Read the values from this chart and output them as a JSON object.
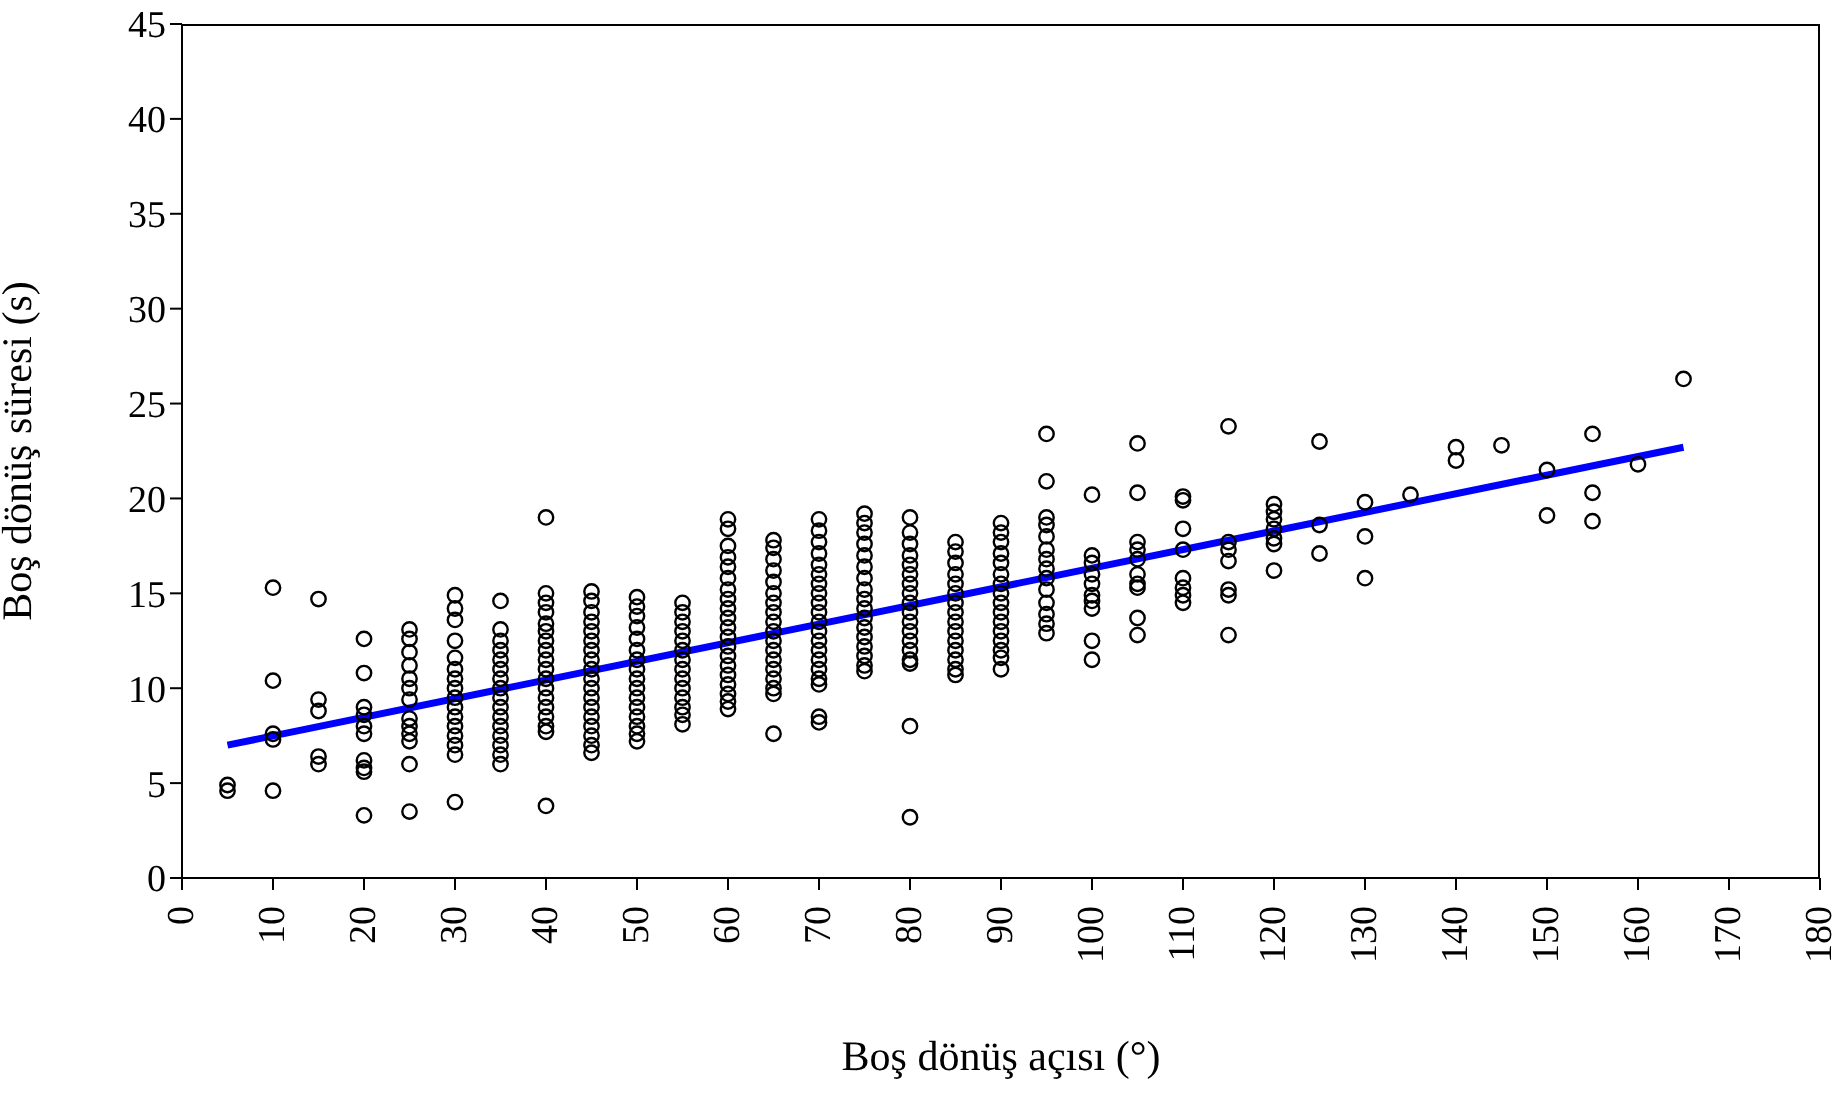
{
  "chart_data": {
    "type": "scatter",
    "xlabel": "Boş dönüş açısı (°)",
    "ylabel": "Boş dönüş süresi (s)",
    "xlim": [
      0,
      180
    ],
    "xticks": [
      0,
      10,
      20,
      30,
      40,
      50,
      60,
      70,
      80,
      90,
      100,
      110,
      120,
      130,
      140,
      150,
      160,
      170,
      180
    ],
    "ylim": [
      0,
      45
    ],
    "yticks": [
      0,
      5,
      10,
      15,
      20,
      25,
      30,
      35,
      40,
      45
    ],
    "series": [
      {
        "marker": "circle",
        "color": "#000000",
        "x": [
          5,
          5,
          10,
          10,
          10,
          10,
          10,
          15,
          15,
          15,
          15,
          15,
          20,
          20,
          20,
          20,
          20,
          20,
          20,
          20,
          20,
          20,
          25,
          25,
          25,
          25,
          25,
          25,
          25,
          25,
          25,
          25,
          25,
          25,
          25,
          30,
          30,
          30,
          30,
          30,
          30,
          30,
          30,
          30,
          30,
          30,
          30,
          30,
          30,
          30,
          30,
          35,
          35,
          35,
          35,
          35,
          35,
          35,
          35,
          35,
          35,
          35,
          35,
          35,
          35,
          35,
          35,
          40,
          40,
          40,
          40,
          40,
          40,
          40,
          40,
          40,
          40,
          40,
          40,
          40,
          40,
          40,
          40,
          40,
          40,
          45,
          45,
          45,
          45,
          45,
          45,
          45,
          45,
          45,
          45,
          45,
          45,
          45,
          45,
          45,
          45,
          45,
          45,
          50,
          50,
          50,
          50,
          50,
          50,
          50,
          50,
          50,
          50,
          50,
          50,
          50,
          50,
          50,
          50,
          55,
          55,
          55,
          55,
          55,
          55,
          55,
          55,
          55,
          55,
          55,
          55,
          55,
          55,
          60,
          60,
          60,
          60,
          60,
          60,
          60,
          60,
          60,
          60,
          60,
          60,
          60,
          60,
          60,
          60,
          60,
          60,
          60,
          60,
          65,
          65,
          65,
          65,
          65,
          65,
          65,
          65,
          65,
          65,
          65,
          65,
          65,
          65,
          65,
          65,
          65,
          65,
          70,
          70,
          70,
          70,
          70,
          70,
          70,
          70,
          70,
          70,
          70,
          70,
          70,
          70,
          70,
          70,
          70,
          70,
          70,
          70,
          75,
          75,
          75,
          75,
          75,
          75,
          75,
          75,
          75,
          75,
          75,
          75,
          75,
          75,
          75,
          75,
          75,
          80,
          80,
          80,
          80,
          80,
          80,
          80,
          80,
          80,
          80,
          80,
          80,
          80,
          80,
          80,
          80,
          80,
          80,
          85,
          85,
          85,
          85,
          85,
          85,
          85,
          85,
          85,
          85,
          85,
          85,
          85,
          85,
          85,
          90,
          90,
          90,
          90,
          90,
          90,
          90,
          90,
          90,
          90,
          90,
          90,
          90,
          90,
          90,
          90,
          95,
          95,
          95,
          95,
          95,
          95,
          95,
          95,
          95,
          95,
          95,
          95,
          95,
          95,
          100,
          100,
          100,
          100,
          100,
          100,
          100,
          100,
          100,
          100,
          105,
          105,
          105,
          105,
          105,
          105,
          105,
          105,
          105,
          105,
          110,
          110,
          110,
          110,
          110,
          110,
          110,
          110,
          115,
          115,
          115,
          115,
          115,
          115,
          115,
          120,
          120,
          120,
          120,
          120,
          120,
          120,
          125,
          125,
          125,
          130,
          130,
          130,
          135,
          140,
          140,
          145,
          150,
          150,
          155,
          155,
          155,
          160,
          165
        ],
        "values": [
          4.6,
          4.9,
          15.3,
          10.4,
          7.6,
          7.3,
          4.6,
          14.7,
          9.4,
          8.8,
          6.4,
          6.0,
          12.6,
          10.8,
          9.0,
          8.6,
          8.0,
          7.6,
          6.2,
          5.8,
          5.6,
          3.3,
          13.1,
          12.6,
          11.9,
          11.2,
          10.5,
          10.0,
          9.4,
          8.4,
          8.0,
          7.6,
          7.2,
          6.0,
          3.5,
          14.9,
          14.2,
          13.6,
          12.5,
          11.6,
          11.0,
          10.5,
          10.0,
          9.5,
          9.0,
          8.5,
          8.0,
          7.5,
          7.0,
          6.5,
          4.0,
          14.6,
          13.1,
          12.5,
          12.0,
          11.5,
          11.0,
          10.5,
          10.0,
          9.5,
          9.0,
          8.5,
          8.0,
          7.5,
          7.0,
          6.5,
          6.0,
          19.0,
          15.0,
          14.5,
          14.0,
          13.4,
          13.0,
          12.5,
          12.0,
          11.5,
          11.0,
          10.5,
          10.0,
          9.5,
          9.0,
          8.5,
          8.0,
          7.7,
          3.8,
          15.1,
          14.6,
          14.0,
          13.5,
          13.0,
          12.5,
          12.0,
          11.5,
          11.0,
          10.5,
          10.0,
          9.5,
          9.0,
          8.5,
          8.0,
          7.5,
          7.0,
          6.6,
          14.8,
          14.3,
          13.8,
          13.2,
          12.6,
          12.0,
          11.5,
          11.0,
          10.5,
          10.0,
          9.5,
          9.0,
          8.5,
          8.0,
          7.6,
          7.2,
          14.5,
          14.0,
          13.5,
          13.0,
          12.5,
          12.0,
          11.5,
          11.0,
          10.5,
          10.0,
          9.5,
          9.0,
          8.6,
          8.1,
          18.9,
          18.4,
          17.5,
          16.9,
          16.4,
          15.8,
          15.2,
          14.7,
          14.2,
          13.7,
          13.2,
          12.7,
          12.2,
          11.7,
          11.2,
          10.7,
          10.2,
          9.7,
          9.3,
          8.9,
          17.8,
          17.4,
          16.8,
          16.2,
          15.6,
          15.0,
          14.5,
          14.0,
          13.5,
          13.0,
          12.5,
          12.0,
          11.5,
          11.0,
          10.5,
          10.0,
          9.7,
          7.6,
          18.9,
          18.3,
          17.7,
          17.1,
          16.5,
          16.0,
          15.5,
          15.0,
          14.5,
          14.0,
          13.5,
          13.0,
          12.5,
          12.0,
          11.5,
          11.0,
          10.5,
          10.2,
          8.5,
          8.2,
          19.2,
          18.7,
          18.2,
          17.6,
          17.0,
          16.4,
          15.8,
          15.2,
          14.7,
          14.2,
          13.7,
          13.2,
          12.7,
          12.2,
          11.7,
          11.2,
          10.9,
          19.0,
          18.2,
          17.6,
          17.0,
          16.5,
          16.0,
          15.5,
          15.0,
          14.5,
          14.0,
          13.5,
          13.0,
          12.5,
          12.0,
          11.5,
          11.3,
          8.0,
          3.2,
          17.7,
          17.2,
          16.6,
          16.0,
          15.5,
          15.0,
          14.5,
          14.0,
          13.5,
          13.0,
          12.5,
          12.0,
          11.5,
          11.0,
          10.7,
          18.7,
          18.2,
          17.7,
          17.1,
          16.6,
          16.0,
          15.5,
          15.0,
          14.5,
          14.0,
          13.5,
          13.0,
          12.5,
          12.0,
          11.6,
          11.0,
          23.4,
          20.9,
          19.0,
          18.6,
          18.0,
          17.3,
          16.8,
          16.3,
          15.8,
          15.2,
          14.5,
          13.9,
          13.4,
          12.9,
          20.2,
          17.0,
          16.6,
          16.0,
          15.5,
          14.9,
          14.6,
          14.2,
          12.5,
          11.5,
          22.9,
          20.3,
          17.7,
          17.3,
          16.8,
          16.0,
          15.5,
          15.3,
          13.7,
          12.8,
          20.1,
          19.9,
          18.4,
          17.3,
          15.8,
          15.3,
          14.9,
          14.5,
          23.8,
          17.7,
          17.3,
          16.7,
          15.2,
          14.9,
          12.8,
          19.7,
          19.3,
          18.9,
          18.4,
          17.9,
          17.6,
          16.2,
          23.0,
          18.6,
          17.1,
          19.8,
          18.0,
          15.8,
          20.2,
          22.7,
          22.0,
          22.8,
          21.5,
          19.1,
          23.4,
          20.3,
          18.8,
          21.8,
          26.3
        ]
      },
      {
        "type": "line",
        "color": "#0000ff",
        "x": [
          5,
          165
        ],
        "values": [
          7.0,
          22.7
        ]
      }
    ]
  }
}
